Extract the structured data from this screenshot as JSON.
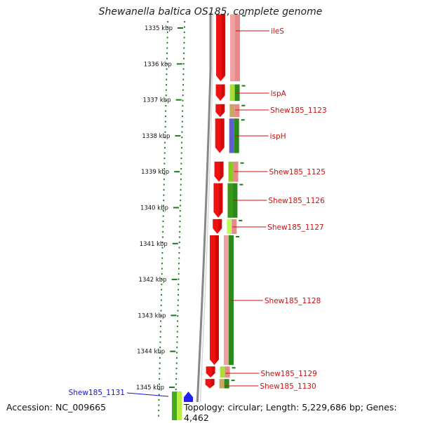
{
  "title": "Shewanella baltica OS185, complete genome",
  "footer": {
    "accession": "Accession: NC_009665",
    "topology": "Topology: circular; Length: 5,229,686 bp; Genes: 4,462"
  },
  "ruler": {
    "unit": "kbp",
    "ticks": [
      "1335 kbp",
      "1336 kbp",
      "1337 kbp",
      "1338 kbp",
      "1339 kbp",
      "1340 kbp",
      "1341 kbp",
      "1342 kbp",
      "1343 kbp",
      "1344 kbp",
      "1345 kbp"
    ]
  },
  "colors": {
    "forward_gene": "#2222ee",
    "reverse_gene": "#ee1111",
    "label_forward": "#1515cc",
    "label_reverse": "#cc1111",
    "ruler": "#1a7a1a",
    "backbone": "#888888"
  },
  "genes": [
    {
      "name": "ileS",
      "strand": "reverse",
      "start_kbp": 1334.6,
      "end_kbp": 1336.5
    },
    {
      "name": "lspA",
      "strand": "reverse",
      "start_kbp": 1336.55,
      "end_kbp": 1337.05
    },
    {
      "name": "Shew185_1123",
      "strand": "reverse",
      "start_kbp": 1337.1,
      "end_kbp": 1337.5
    },
    {
      "name": "ispH",
      "strand": "reverse",
      "start_kbp": 1337.5,
      "end_kbp": 1338.5
    },
    {
      "name": "Shew185_1125",
      "strand": "reverse",
      "start_kbp": 1338.7,
      "end_kbp": 1339.3
    },
    {
      "name": "Shew185_1126",
      "strand": "reverse",
      "start_kbp": 1339.3,
      "end_kbp": 1340.3
    },
    {
      "name": "Shew185_1127",
      "strand": "reverse",
      "start_kbp": 1340.3,
      "end_kbp": 1340.75
    },
    {
      "name": "Shew185_1128",
      "strand": "reverse",
      "start_kbp": 1340.75,
      "end_kbp": 1344.4
    },
    {
      "name": "Shew185_1129",
      "strand": "reverse",
      "start_kbp": 1344.4,
      "end_kbp": 1344.75
    },
    {
      "name": "Shew185_1130",
      "strand": "reverse",
      "start_kbp": 1344.75,
      "end_kbp": 1345.05
    },
    {
      "name": "Shew185_1131",
      "strand": "forward",
      "start_kbp": 1345.1,
      "end_kbp": 1345.6
    }
  ]
}
